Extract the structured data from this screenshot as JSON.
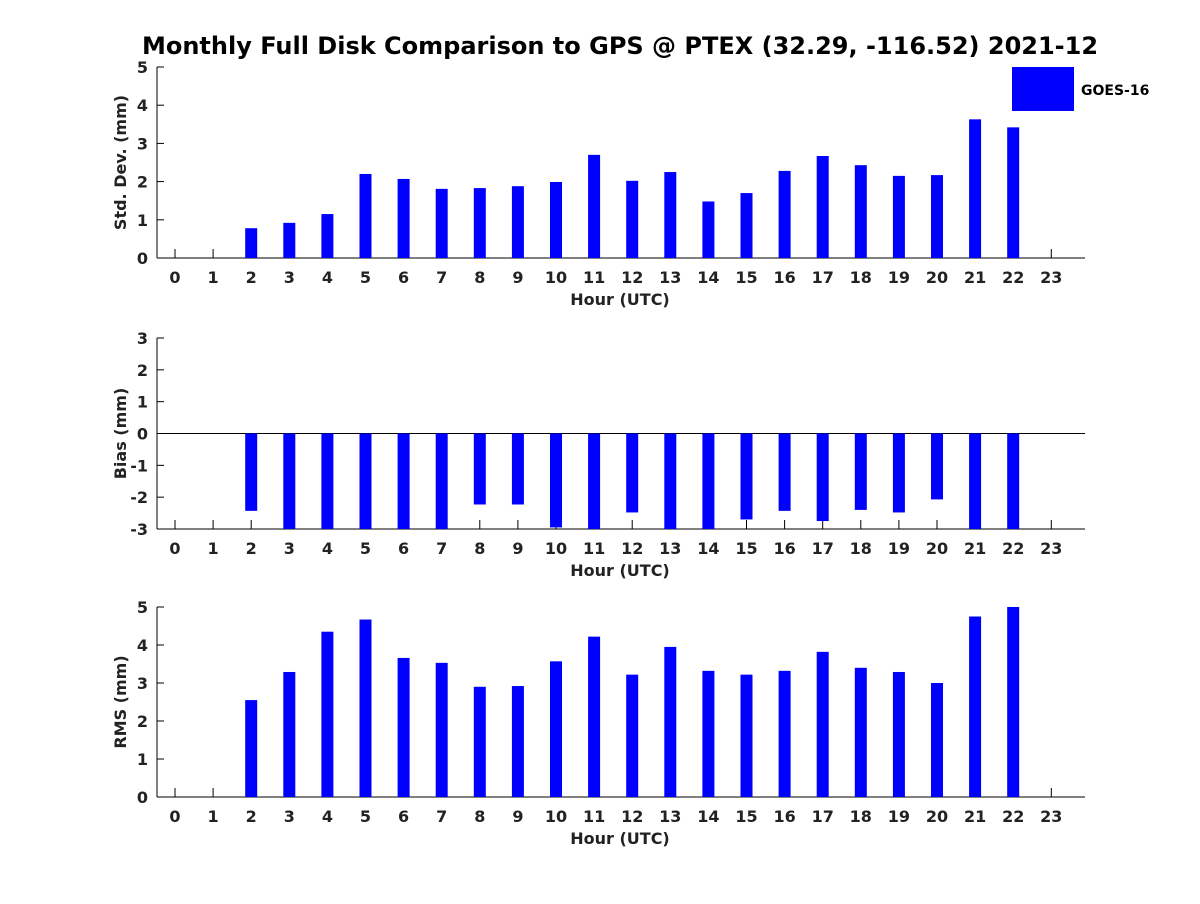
{
  "figure": {
    "title": "Monthly Full Disk Comparison to GPS @ PTEX (32.29, -116.52) 2021-12"
  },
  "legend": {
    "label": "GOES-16",
    "color": "#0000ff",
    "placement": "top-right"
  },
  "chart_data": [
    {
      "type": "bar",
      "ylabel": "Std. Dev. (mm)",
      "xlabel": "Hour (UTC)",
      "ylim": [
        0,
        5
      ],
      "yticks": [
        "0",
        "1",
        "2",
        "3",
        "4",
        "5"
      ],
      "categories": [
        "0",
        "1",
        "2",
        "3",
        "4",
        "5",
        "6",
        "7",
        "8",
        "9",
        "10",
        "11",
        "12",
        "13",
        "14",
        "15",
        "16",
        "17",
        "18",
        "19",
        "20",
        "21",
        "22",
        "23"
      ],
      "series": [
        {
          "name": "GOES-16",
          "color": "#0000ff",
          "values": [
            null,
            null,
            0.78,
            0.92,
            1.15,
            2.2,
            2.07,
            1.81,
            1.83,
            1.88,
            1.99,
            2.7,
            2.02,
            2.25,
            1.48,
            1.7,
            2.28,
            2.67,
            2.43,
            2.15,
            2.17,
            3.63,
            3.42,
            null
          ]
        }
      ]
    },
    {
      "type": "bar",
      "ylabel": "Bias (mm)",
      "xlabel": "Hour (UTC)",
      "ylim": [
        -3,
        3
      ],
      "yticks": [
        "-3",
        "-2",
        "-1",
        "0",
        "1",
        "2",
        "3"
      ],
      "zero_line": true,
      "categories": [
        "0",
        "1",
        "2",
        "3",
        "4",
        "5",
        "6",
        "7",
        "8",
        "9",
        "10",
        "11",
        "12",
        "13",
        "14",
        "15",
        "16",
        "17",
        "18",
        "19",
        "20",
        "21",
        "22",
        "23"
      ],
      "series": [
        {
          "name": "GOES-16",
          "color": "#0000ff",
          "values": [
            null,
            null,
            -2.43,
            -3.0,
            -3.0,
            -3.0,
            -3.0,
            -3.0,
            -2.23,
            -2.23,
            -2.95,
            -3.0,
            -2.48,
            -3.0,
            -3.0,
            -2.7,
            -2.43,
            -2.75,
            -2.4,
            -2.48,
            -2.07,
            -3.0,
            -3.0,
            null
          ]
        }
      ]
    },
    {
      "type": "bar",
      "ylabel": "RMS (mm)",
      "xlabel": "Hour (UTC)",
      "ylim": [
        0,
        5
      ],
      "yticks": [
        "0",
        "1",
        "2",
        "3",
        "4",
        "5"
      ],
      "categories": [
        "0",
        "1",
        "2",
        "3",
        "4",
        "5",
        "6",
        "7",
        "8",
        "9",
        "10",
        "11",
        "12",
        "13",
        "14",
        "15",
        "16",
        "17",
        "18",
        "19",
        "20",
        "21",
        "22",
        "23"
      ],
      "series": [
        {
          "name": "GOES-16",
          "color": "#0000ff",
          "values": [
            null,
            null,
            2.55,
            3.29,
            4.35,
            4.67,
            3.66,
            3.53,
            2.9,
            2.92,
            3.57,
            4.22,
            3.22,
            3.95,
            3.32,
            3.22,
            3.32,
            3.82,
            3.4,
            3.29,
            3.0,
            4.75,
            5.0,
            null
          ]
        }
      ]
    }
  ]
}
